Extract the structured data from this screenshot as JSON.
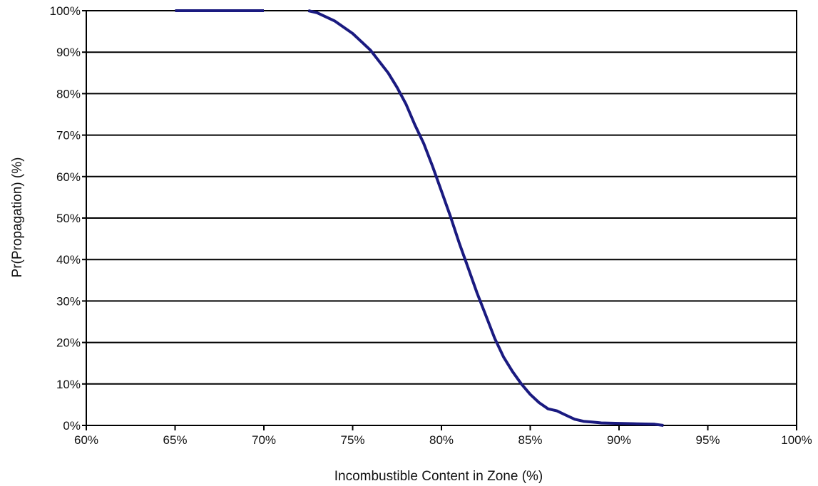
{
  "chart_data": {
    "type": "line",
    "title": "",
    "xlabel": "Incombustible Content in Zone (%)",
    "ylabel": "Pr(Propagation) (%)",
    "xlim": [
      60,
      100
    ],
    "ylim": [
      0,
      100
    ],
    "x_ticks": [
      60,
      65,
      70,
      75,
      80,
      85,
      90,
      95,
      100
    ],
    "x_tick_labels": [
      "60%",
      "65%",
      "70%",
      "75%",
      "80%",
      "85%",
      "90%",
      "95%",
      "100%"
    ],
    "y_ticks": [
      0,
      10,
      20,
      30,
      40,
      50,
      60,
      70,
      80,
      90,
      100
    ],
    "y_tick_labels": [
      "0%",
      "10%",
      "20%",
      "30%",
      "40%",
      "50%",
      "60%",
      "70%",
      "80%",
      "90%",
      "100%"
    ],
    "grid": "horizontal",
    "legend": "none",
    "series": [
      {
        "color": "#1a1a80",
        "segments": [
          {
            "x": [
              65,
              70
            ],
            "y": [
              100,
              100
            ]
          },
          {
            "x": [
              72.5,
              73,
              74,
              75,
              76,
              77,
              77.5,
              78,
              78.5,
              79,
              79.5,
              80,
              80.5,
              81,
              81.5,
              82,
              82.5,
              83,
              83.5,
              84,
              84.5,
              85,
              85.5,
              86,
              86.5,
              87,
              87.5,
              88,
              88.5,
              89,
              90,
              91,
              92,
              92.5
            ],
            "y": [
              100,
              99.5,
              97.5,
              94.5,
              90.5,
              85,
              81.5,
              77.5,
              72.5,
              68,
              62.5,
              56.5,
              50.5,
              44,
              38,
              32,
              26.5,
              21,
              16.5,
              13,
              10,
              7.5,
              5.5,
              4,
              3.5,
              2.5,
              1.5,
              1,
              0.8,
              0.6,
              0.5,
              0.4,
              0.3,
              0
            ]
          }
        ]
      }
    ]
  }
}
